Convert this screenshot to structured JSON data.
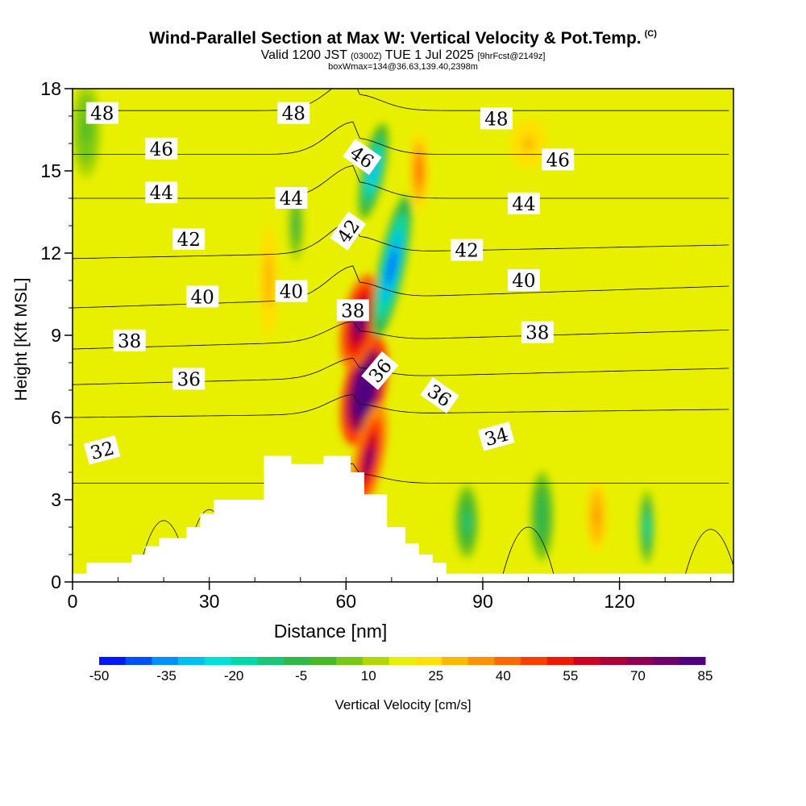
{
  "header": {
    "title": "Wind-Parallel Section at Max W: Vertical Velocity & Pot.Temp.",
    "title_mark": "(C)",
    "subtitle_a": "Valid 1200 JST",
    "subtitle_b": "(0300Z)",
    "subtitle_c": "TUE 1 Jul 2025",
    "subtitle_d": "[9hrFcst@2149z]",
    "subsubtitle": "boxWmax=134@36.63,139.40,2398m"
  },
  "chart_data": {
    "type": "heatmap",
    "xlabel": "Distance [nm]",
    "ylabel": "Height [Kft MSL]",
    "xlim": [
      0,
      145
    ],
    "ylim": [
      0,
      18
    ],
    "xticks": [
      0,
      30,
      60,
      90,
      120
    ],
    "yticks": [
      0,
      3,
      6,
      9,
      12,
      15,
      18
    ],
    "colorbar": {
      "label": "Vertical Velocity [cm/s]",
      "range": [
        -50,
        85
      ],
      "step": 5,
      "tick_labels": [
        "-50",
        "-35",
        "-20",
        "-5",
        "10",
        "25",
        "40",
        "55",
        "70",
        "85"
      ],
      "colors": [
        "#0018ff",
        "#0050ff",
        "#0090ff",
        "#00c0f0",
        "#00e0d8",
        "#00d8a8",
        "#18c878",
        "#30b848",
        "#48b828",
        "#78c818",
        "#b0d800",
        "#e8f000",
        "#ffe000",
        "#ffb800",
        "#ff9000",
        "#ff6800",
        "#ff3c00",
        "#f01800",
        "#d00020",
        "#b00038",
        "#900050",
        "#700068",
        "#500080"
      ]
    },
    "background_w": 7,
    "w_features": [
      {
        "x": 64,
        "y": 7.0,
        "w": 85,
        "note": "updraft core"
      },
      {
        "x": 63,
        "y": 9.5,
        "w": 60
      },
      {
        "x": 65,
        "y": 4.5,
        "w": 55
      },
      {
        "x": 70,
        "y": 11.5,
        "w": -45,
        "note": "downdraft core"
      },
      {
        "x": 66,
        "y": 15,
        "w": -35
      },
      {
        "x": 76,
        "y": 15,
        "w": 25
      },
      {
        "x": 86.5,
        "y": 2.2,
        "w": -20
      },
      {
        "x": 103,
        "y": 2.4,
        "w": -15
      },
      {
        "x": 126,
        "y": 2.0,
        "w": -25
      },
      {
        "x": 115,
        "y": 2.4,
        "w": 22
      },
      {
        "x": 43,
        "y": 11,
        "w": 18
      },
      {
        "x": 49,
        "y": 13,
        "w": -12
      },
      {
        "x": 3,
        "y": 16.5,
        "w": -8
      },
      {
        "x": 100,
        "y": 16,
        "w": 15
      }
    ],
    "terrain": {
      "x": [
        0,
        3,
        3,
        13,
        13,
        16,
        16,
        19,
        19,
        25,
        25,
        28,
        28,
        31,
        31,
        42,
        42,
        48,
        48,
        55,
        55,
        58,
        58,
        61,
        61,
        64,
        64,
        69,
        69,
        73,
        73,
        76,
        76,
        79,
        79,
        82,
        82,
        85,
        85,
        145
      ],
      "y": [
        0.3,
        0.3,
        0.7,
        0.7,
        1.0,
        1.0,
        1.3,
        1.3,
        1.6,
        1.6,
        2.0,
        2.0,
        2.5,
        2.5,
        3.0,
        3.0,
        4.6,
        4.6,
        4.3,
        4.3,
        4.6,
        4.6,
        4.6,
        4.6,
        4.0,
        4.0,
        3.2,
        3.2,
        2.0,
        2.0,
        1.4,
        1.4,
        1.0,
        1.0,
        0.7,
        0.7,
        0.3,
        0.3,
        0.3,
        0.3
      ]
    },
    "isentropes": [
      {
        "label": "32",
        "y0": 3.6,
        "yR": 3.6
      },
      {
        "label": "34",
        "y0": 6.0,
        "yR": 6.3
      },
      {
        "label": "36",
        "y0": 7.2,
        "yR": 7.8
      },
      {
        "label": "38",
        "y0": 8.5,
        "yR": 9.2
      },
      {
        "label": "40",
        "y0": 10.0,
        "yR": 10.8
      },
      {
        "label": "42",
        "y0": 11.8,
        "yR": 12.3
      },
      {
        "label": "44",
        "y0": 14.0,
        "yR": 14.0
      },
      {
        "label": "46",
        "y0": 15.6,
        "yR": 15.6
      },
      {
        "label": "48",
        "y0": 17.2,
        "yR": 17.2
      }
    ],
    "isentrope_labels": [
      {
        "text": "48",
        "x": 6.5,
        "y": 17.1,
        "rot": 0
      },
      {
        "text": "48",
        "x": 48.5,
        "y": 17.1,
        "rot": 0
      },
      {
        "text": "48",
        "x": 93,
        "y": 16.9,
        "rot": 0
      },
      {
        "text": "46",
        "x": 19.5,
        "y": 15.8,
        "rot": 0
      },
      {
        "text": "46",
        "x": 63.5,
        "y": 15.5,
        "rot": 35
      },
      {
        "text": "46",
        "x": 106.5,
        "y": 15.4,
        "rot": 0
      },
      {
        "text": "44",
        "x": 19.5,
        "y": 14.2,
        "rot": 0
      },
      {
        "text": "44",
        "x": 48,
        "y": 14.0,
        "rot": 0
      },
      {
        "text": "44",
        "x": 99,
        "y": 13.8,
        "rot": 0
      },
      {
        "text": "42",
        "x": 25.5,
        "y": 12.5,
        "rot": 0
      },
      {
        "text": "42",
        "x": 60.5,
        "y": 12.8,
        "rot": -55
      },
      {
        "text": "42",
        "x": 86.5,
        "y": 12.1,
        "rot": 0
      },
      {
        "text": "40",
        "x": 28.5,
        "y": 10.4,
        "rot": 0
      },
      {
        "text": "40",
        "x": 48,
        "y": 10.6,
        "rot": 0
      },
      {
        "text": "40",
        "x": 99,
        "y": 11.0,
        "rot": 0
      },
      {
        "text": "38",
        "x": 12.5,
        "y": 8.8,
        "rot": 0
      },
      {
        "text": "38",
        "x": 61.5,
        "y": 9.9,
        "rot": 0
      },
      {
        "text": "38",
        "x": 102,
        "y": 9.1,
        "rot": 0
      },
      {
        "text": "36",
        "x": 25.5,
        "y": 7.4,
        "rot": 0
      },
      {
        "text": "36",
        "x": 67.5,
        "y": 7.7,
        "rot": -50
      },
      {
        "text": "36",
        "x": 80.5,
        "y": 6.8,
        "rot": 35
      },
      {
        "text": "34",
        "x": 93,
        "y": 5.3,
        "rot": -15
      },
      {
        "text": "32",
        "x": 6.5,
        "y": 4.8,
        "rot": -15
      }
    ]
  }
}
